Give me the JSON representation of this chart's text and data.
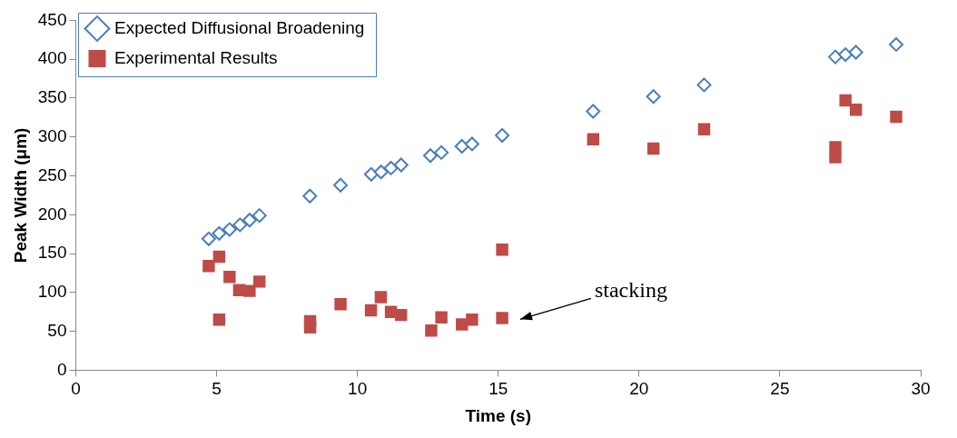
{
  "chart_data": {
    "type": "scatter",
    "xlabel": "Time (s)",
    "ylabel": "Peak Width (μm)",
    "xlim": [
      0,
      30
    ],
    "xticks": [
      0,
      5,
      10,
      15,
      20,
      25,
      30
    ],
    "ylim": [
      0,
      450
    ],
    "yticks": [
      0,
      50,
      100,
      150,
      200,
      250,
      300,
      350,
      400,
      450
    ],
    "grid": false,
    "legend": "top left",
    "annotations": [
      "stacking"
    ],
    "series": [
      {
        "name": "Expected Diffusional Broadening",
        "color": "#4a7ebb",
        "marker": "diamond",
        "x": [
          4.72,
          5.09,
          5.46,
          5.83,
          6.17,
          6.52,
          8.31,
          9.4,
          10.49,
          10.84,
          11.19,
          11.55,
          12.59,
          12.98,
          13.71,
          14.07,
          15.14,
          18.37,
          20.51,
          22.31,
          26.97,
          27.33,
          27.7,
          29.13
        ],
        "values": [
          169,
          176,
          181,
          187,
          193,
          199,
          224,
          238,
          252,
          255,
          260,
          264,
          276,
          280,
          288,
          291,
          302,
          333,
          352,
          367,
          403,
          406,
          409,
          419
        ]
      },
      {
        "name": "Experimental Results",
        "color": "#be4b48",
        "marker": "square",
        "x": [
          4.72,
          5.09,
          5.46,
          5.8,
          6.17,
          6.52,
          5.09,
          8.32,
          8.32,
          9.4,
          10.48,
          10.83,
          11.19,
          11.55,
          12.62,
          12.98,
          13.71,
          14.07,
          15.14,
          15.14,
          18.37,
          20.51,
          22.31,
          26.97,
          26.97,
          27.33,
          27.7,
          29.13
        ],
        "values": [
          134,
          146,
          120,
          103,
          102,
          114,
          65,
          63,
          55,
          85,
          77,
          94,
          75,
          71,
          51,
          68,
          59,
          65,
          67,
          155,
          297,
          285,
          310,
          287,
          274,
          347,
          335,
          326
        ]
      }
    ]
  }
}
